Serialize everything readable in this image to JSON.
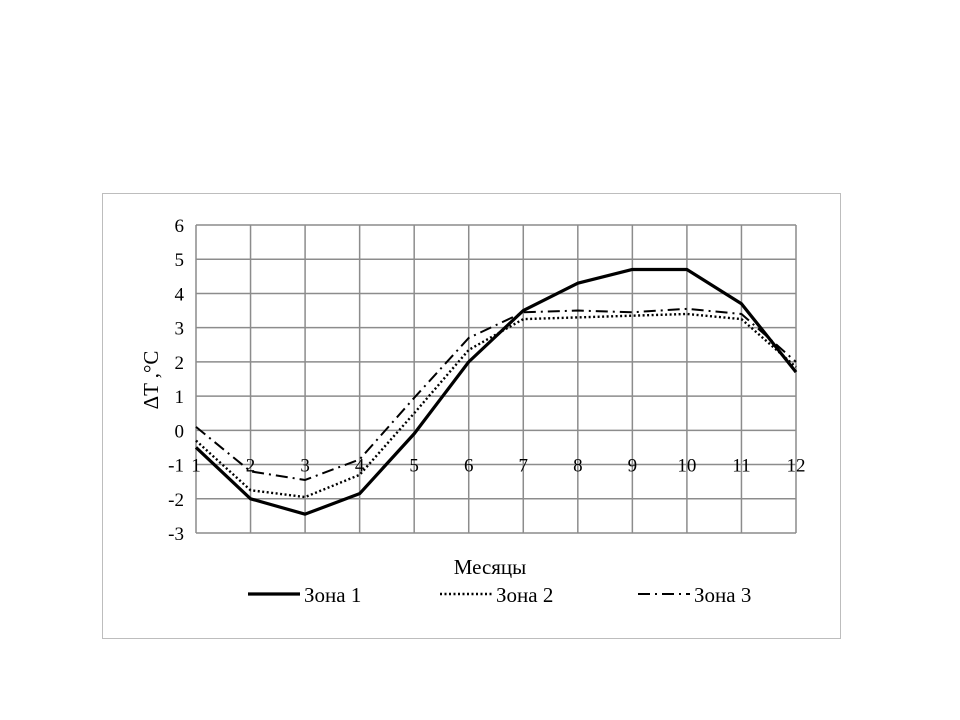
{
  "chart_data": {
    "type": "line",
    "xlabel": "Месяцы",
    "ylabel": "ΔT ,°C",
    "x": [
      1,
      2,
      3,
      4,
      5,
      6,
      7,
      8,
      9,
      10,
      11,
      12
    ],
    "x_ticks": [
      "1",
      "2",
      "3",
      "4",
      "5",
      "6",
      "7",
      "8",
      "9",
      "10",
      "11",
      "12"
    ],
    "ylim": [
      -3,
      6
    ],
    "y_ticks": [
      "-3",
      "-2",
      "-1",
      "0",
      "1",
      "2",
      "3",
      "4",
      "5",
      "6"
    ],
    "grid": true,
    "legend_position": "bottom",
    "series": [
      {
        "name": "Зона 1",
        "style": "solid",
        "values": [
          -0.5,
          -2.0,
          -2.45,
          -1.85,
          -0.1,
          2.0,
          3.5,
          4.3,
          4.7,
          4.7,
          3.7,
          1.7
        ]
      },
      {
        "name": "Зона 2",
        "style": "dotted",
        "values": [
          -0.3,
          -1.75,
          -1.95,
          -1.3,
          0.5,
          2.35,
          3.25,
          3.3,
          3.35,
          3.4,
          3.25,
          1.85
        ]
      },
      {
        "name": "Зона 3",
        "style": "dash-dot",
        "values": [
          0.1,
          -1.2,
          -1.45,
          -0.85,
          0.95,
          2.7,
          3.45,
          3.5,
          3.45,
          3.55,
          3.4,
          2.0
        ]
      }
    ]
  }
}
